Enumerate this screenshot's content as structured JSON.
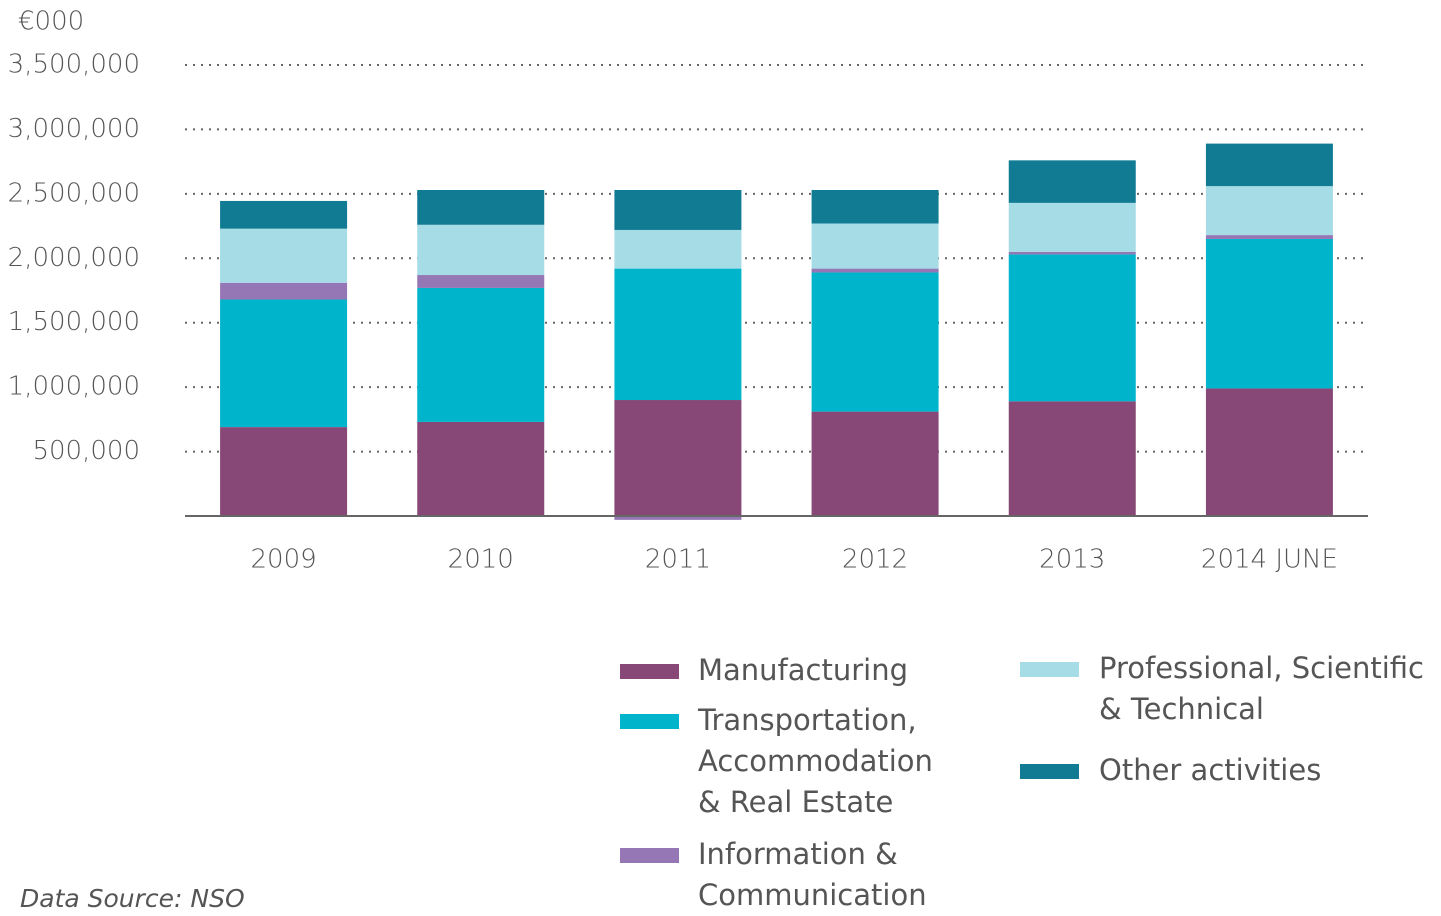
{
  "chart_data": {
    "type": "stacked-bar",
    "unit_label": "€000",
    "source": "Data Source: NSO",
    "categories": [
      "2009",
      "2010",
      "2011",
      "2012",
      "2013",
      "2014 JUNE"
    ],
    "series": [
      {
        "name": "Manufacturing",
        "color": "#874877",
        "values": [
          690000,
          730000,
          900000,
          810000,
          890000,
          990000
        ]
      },
      {
        "name": "Transportation, Accommodation & Real Estate",
        "color": "#00b4cb",
        "values": [
          990000,
          1040000,
          1020000,
          1080000,
          1140000,
          1160000
        ]
      },
      {
        "name": "Information & Communication",
        "color": "#9577b5",
        "values": [
          130000,
          100000,
          -30000,
          30000,
          20000,
          30000
        ]
      },
      {
        "name": "Professional, Scientific & Technical",
        "color": "#a5dce6",
        "values": [
          420000,
          390000,
          300000,
          350000,
          380000,
          380000
        ]
      },
      {
        "name": "Other activities",
        "color": "#107b92",
        "values": [
          215000,
          270000,
          310000,
          260000,
          330000,
          330000
        ]
      }
    ],
    "ylim": [
      0,
      3500000
    ],
    "yticks": [
      {
        "value": 500000,
        "label": "500,000"
      },
      {
        "value": 1000000,
        "label": "1,000,000"
      },
      {
        "value": 1500000,
        "label": "1,500,000"
      },
      {
        "value": 2000000,
        "label": "2,000,000"
      },
      {
        "value": 2500000,
        "label": "2,500,000"
      },
      {
        "value": 3000000,
        "label": "3,000,000"
      },
      {
        "value": 3500000,
        "label": "3,500,000"
      }
    ],
    "grid": true
  }
}
